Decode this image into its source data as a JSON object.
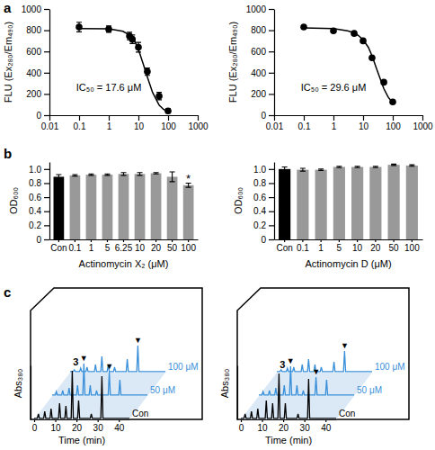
{
  "panel_labels": [
    "a",
    "b",
    "c"
  ],
  "chart_data": [
    {
      "type": "scatter",
      "ylabel": "FLU (Ex₂₈₀/Em₄₉₀)",
      "log": "x",
      "xlim": [
        0.01,
        1000
      ],
      "xticks": [
        0.01,
        0.1,
        1,
        10,
        100,
        1000
      ],
      "ylim": [
        0,
        1000
      ],
      "yticks": [
        0,
        200,
        400,
        600,
        800,
        1000
      ],
      "annotations": [
        {
          "text": "IC₅₀ = 17.6 μM",
          "x": 0.08,
          "y": 230
        }
      ],
      "series": [
        {
          "type": "scatter",
          "marker": "circle",
          "color": "#000000",
          "x": [
            0.1,
            1,
            5,
            6.25,
            10,
            20,
            50,
            100
          ],
          "values": [
            830,
            810,
            745,
            715,
            640,
            410,
            180,
            40
          ],
          "errors": [
            45,
            30,
            35,
            40,
            45,
            35,
            35,
            20
          ]
        },
        {
          "type": "line",
          "color": "#000000",
          "x": [
            0.1,
            1,
            3,
            5,
            7,
            10,
            15,
            20,
            30,
            50,
            70,
            100
          ],
          "values": [
            815,
            813,
            790,
            755,
            715,
            620,
            470,
            360,
            215,
            95,
            55,
            30
          ]
        }
      ]
    },
    {
      "type": "scatter",
      "ylabel": "FLU (Ex₂₈₀/Em₄₉₀)",
      "log": "x",
      "xlim": [
        0.01,
        1000
      ],
      "xticks": [
        0.01,
        0.1,
        1,
        10,
        100,
        1000
      ],
      "ylim": [
        0,
        1000
      ],
      "yticks": [
        0,
        200,
        400,
        600,
        800,
        1000
      ],
      "annotations": [
        {
          "text": "IC₅₀ = 29.6 μM",
          "x": 0.08,
          "y": 230
        }
      ],
      "series": [
        {
          "type": "scatter",
          "marker": "circle",
          "color": "#000000",
          "x": [
            0.1,
            1,
            5,
            10,
            20,
            50,
            100
          ],
          "values": [
            830,
            795,
            770,
            700,
            540,
            310,
            125
          ],
          "errors": [
            10,
            8,
            10,
            12,
            12,
            10,
            8
          ]
        },
        {
          "type": "line",
          "color": "#000000",
          "x": [
            0.1,
            1,
            3,
            5,
            7,
            10,
            15,
            20,
            30,
            50,
            70,
            100
          ],
          "values": [
            822,
            815,
            795,
            775,
            750,
            710,
            640,
            560,
            420,
            250,
            170,
            115
          ]
        }
      ]
    },
    {
      "type": "bar",
      "xlabel": "Actinomycin X₂ (μM)",
      "ylabel": "OD₆₀₀",
      "categories": [
        "Con",
        "0.1",
        "1",
        "5",
        "6.25",
        "10",
        "20",
        "50",
        "100"
      ],
      "values": [
        0.89,
        0.91,
        0.92,
        0.92,
        0.93,
        0.93,
        0.94,
        0.89,
        0.77
      ],
      "errors": [
        0.03,
        0.01,
        0.01,
        0.01,
        0.02,
        0.02,
        0.01,
        0.07,
        0.03
      ],
      "colors": [
        "#000000",
        "#999999",
        "#999999",
        "#999999",
        "#999999",
        "#999999",
        "#999999",
        "#999999",
        "#999999"
      ],
      "ylim": [
        0,
        1.1
      ],
      "yticks": [
        0,
        0.2,
        0.4,
        0.6,
        0.8,
        {
          "value": 1,
          "label": "1.0"
        }
      ],
      "annotations": [
        {
          "text": "*",
          "x": "100",
          "y": 0.81
        }
      ]
    },
    {
      "type": "bar",
      "xlabel": "Actinomycin D (μM)",
      "ylabel": "OD₆₀₀",
      "categories": [
        "Con",
        "0.1",
        "1",
        "5",
        "10",
        "20",
        "50",
        "100"
      ],
      "values": [
        1.0,
        0.99,
        0.99,
        1.03,
        1.03,
        1.03,
        1.06,
        1.05
      ],
      "errors": [
        0.03,
        0.02,
        0.01,
        0.01,
        0.01,
        0.01,
        0.01,
        0.01
      ],
      "colors": [
        "#000000",
        "#999999",
        "#999999",
        "#999999",
        "#999999",
        "#999999",
        "#999999",
        "#999999"
      ],
      "ylim": [
        0,
        1.1
      ],
      "yticks": [
        0,
        0.2,
        0.4,
        0.6,
        0.8,
        {
          "value": 1,
          "label": "1.0"
        }
      ]
    },
    {
      "type": "line",
      "xlabel": "Time (min)",
      "ylabel": "Abs₃₈₀",
      "tick_labels": "x",
      "xlim": [
        0,
        45
      ],
      "xticks": [
        0,
        10,
        20,
        30,
        40
      ],
      "ylim": [
        0,
        1
      ],
      "x": [
        0,
        1.5,
        2,
        2.5,
        4.5,
        5,
        5.5,
        7.5,
        8,
        8.5,
        11.5,
        12,
        12.5,
        14.5,
        15,
        15.5,
        17.5,
        18,
        18.5,
        20.5,
        21,
        21.5,
        26.5,
        27,
        27.5,
        31.5,
        32,
        32.5,
        45
      ],
      "series": [
        {
          "name": "Con",
          "color": "#000000",
          "values": [
            0.02,
            0.02,
            0.1,
            0.02,
            0.02,
            0.15,
            0.02,
            0.02,
            0.2,
            0.02,
            0.02,
            0.3,
            0.02,
            0.02,
            0.25,
            0.02,
            0.02,
            0.9,
            0.02,
            0.02,
            0.35,
            0.02,
            0.02,
            0.1,
            0.02,
            0.02,
            0.8,
            0.02,
            0.02
          ]
        },
        {
          "name": "50 μM",
          "color": "#3a8fd9",
          "values": [
            0.02,
            0.02,
            0.08,
            0.02,
            0.02,
            0.1,
            0.02,
            0.02,
            0.15,
            0.02,
            0.02,
            0.2,
            0.02,
            0.02,
            0.6,
            0.02,
            0.02,
            0.2,
            0.02,
            0.02,
            0.1,
            0.02,
            0.02,
            0.45,
            0.02,
            0.02,
            0.3,
            0.02,
            0.02
          ],
          "annotations": [
            {
              "x": 15,
              "text": "▼"
            },
            {
              "x": 15,
              "text": "3"
            },
            {
              "x": 27,
              "text": "▼"
            }
          ]
        },
        {
          "name": "100 μM",
          "color": "#3a8fd9",
          "values": [
            0.02,
            0.02,
            0.05,
            0.02,
            0.02,
            0.08,
            0.02,
            0.02,
            0.1,
            0.02,
            0.02,
            0.15,
            0.02,
            0.02,
            0.3,
            0.02,
            0.02,
            0.15,
            0.02,
            0.02,
            0.1,
            0.02,
            0.02,
            0.25,
            0.02,
            0.02,
            0.5,
            0.02,
            0.02
          ],
          "annotations": [
            {
              "x": 32,
              "text": "▼"
            }
          ]
        }
      ]
    },
    {
      "type": "line",
      "xlabel": "Time (min)",
      "ylabel": "Abs₃₈₀",
      "tick_labels": "x",
      "xlim": [
        0,
        45
      ],
      "xticks": [
        0,
        10,
        20,
        30,
        40
      ],
      "ylim": [
        0,
        1
      ],
      "x": [
        0,
        1.5,
        2,
        2.5,
        4.5,
        5,
        5.5,
        7.5,
        8,
        8.5,
        11.5,
        12,
        12.5,
        14.5,
        15,
        15.5,
        17.5,
        18,
        18.5,
        20.5,
        21,
        21.5,
        26.5,
        27,
        27.5,
        31.5,
        32,
        32.5,
        45
      ],
      "series": [
        {
          "name": "Con",
          "color": "#000000",
          "values": [
            0.02,
            0.02,
            0.1,
            0.02,
            0.02,
            0.15,
            0.02,
            0.02,
            0.2,
            0.02,
            0.02,
            0.35,
            0.02,
            0.02,
            0.3,
            0.02,
            0.02,
            0.85,
            0.02,
            0.02,
            0.3,
            0.02,
            0.02,
            0.1,
            0.02,
            0.02,
            0.75,
            0.02,
            0.02
          ]
        },
        {
          "name": "50 μM",
          "color": "#3a8fd9",
          "values": [
            0.02,
            0.02,
            0.08,
            0.02,
            0.02,
            0.1,
            0.02,
            0.02,
            0.15,
            0.02,
            0.02,
            0.2,
            0.02,
            0.02,
            0.55,
            0.02,
            0.02,
            0.2,
            0.02,
            0.02,
            0.1,
            0.02,
            0.02,
            0.35,
            0.02,
            0.02,
            0.3,
            0.02,
            0.02
          ],
          "annotations": [
            {
              "x": 15,
              "text": "▼"
            },
            {
              "x": 15,
              "text": "3"
            },
            {
              "x": 27,
              "text": "▼"
            }
          ]
        },
        {
          "name": "100 μM",
          "color": "#3a8fd9",
          "values": [
            0.02,
            0.02,
            0.05,
            0.02,
            0.02,
            0.08,
            0.02,
            0.02,
            0.1,
            0.02,
            0.02,
            0.15,
            0.02,
            0.02,
            0.25,
            0.02,
            0.02,
            0.15,
            0.02,
            0.02,
            0.1,
            0.02,
            0.02,
            0.2,
            0.02,
            0.02,
            0.4,
            0.02,
            0.02
          ],
          "annotations": [
            {
              "x": 32,
              "text": "▼"
            }
          ]
        }
      ]
    }
  ]
}
